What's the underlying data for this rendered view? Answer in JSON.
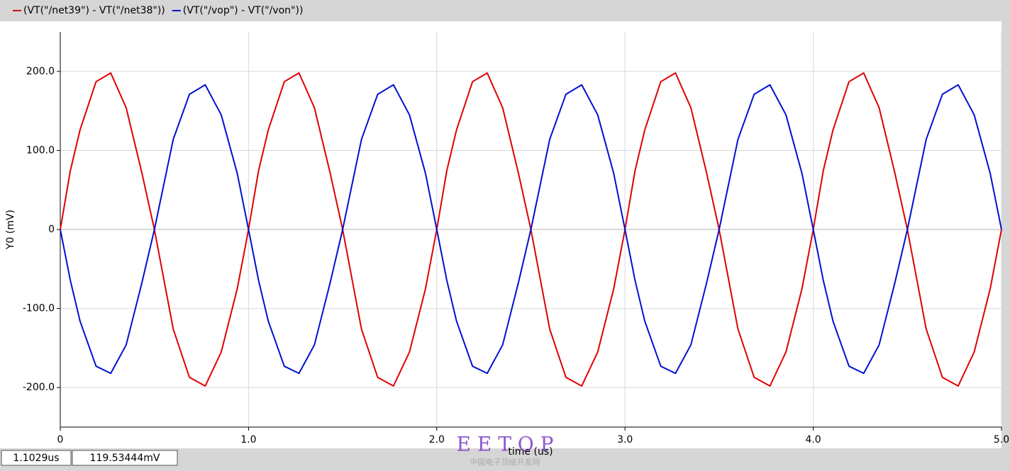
{
  "chart_data": {
    "type": "line",
    "xlabel": "time (us)",
    "ylabel": "Y0 (mV)",
    "x": [
      0,
      0.053,
      0.105,
      0.19,
      0.268,
      0.35,
      0.433,
      0.5,
      0.6,
      0.686,
      0.77,
      0.855,
      0.94,
      1,
      1.053,
      1.105,
      1.19,
      1.268,
      1.35,
      1.433,
      1.5,
      1.6,
      1.686,
      1.77,
      1.855,
      1.94,
      2,
      2.053,
      2.105,
      2.19,
      2.268,
      2.35,
      2.433,
      2.5,
      2.6,
      2.686,
      2.77,
      2.855,
      2.94,
      3,
      3.053,
      3.105,
      3.19,
      3.268,
      3.35,
      3.433,
      3.5,
      3.6,
      3.686,
      3.77,
      3.855,
      3.94,
      4,
      4.053,
      4.105,
      4.19,
      4.268,
      4.35,
      4.433,
      4.5,
      4.6,
      4.686,
      4.77,
      4.855,
      4.94,
      5
    ],
    "series": [
      {
        "name": "(VT(\"/net39\") - VT(\"/net38\"))",
        "color": "#e00000",
        "values": [
          0,
          74,
          126,
          187,
          198,
          154,
          72,
          0,
          -126,
          -187,
          -198,
          -155,
          -75,
          0,
          74,
          126,
          187,
          198,
          154,
          72,
          0,
          -126,
          -187,
          -198,
          -155,
          -75,
          0,
          74,
          126,
          187,
          198,
          154,
          72,
          0,
          -126,
          -187,
          -198,
          -155,
          -75,
          0,
          74,
          126,
          187,
          198,
          154,
          72,
          0,
          -126,
          -187,
          -198,
          -155,
          -75,
          0,
          74,
          126,
          187,
          198,
          154,
          72,
          0,
          -126,
          -187,
          -198,
          -155,
          -75,
          0
        ]
      },
      {
        "name": "(VT(\"/vop\") - VT(\"/von\"))",
        "color": "#0010d0",
        "values": [
          0,
          -64,
          -116,
          -173,
          -182,
          -146,
          -68,
          0,
          114,
          171,
          183,
          145,
          71,
          0,
          -64,
          -116,
          -173,
          -182,
          -146,
          -68,
          0,
          114,
          171,
          183,
          145,
          71,
          0,
          -64,
          -116,
          -173,
          -182,
          -146,
          -68,
          0,
          114,
          171,
          183,
          145,
          71,
          0,
          -64,
          -116,
          -173,
          -182,
          -146,
          -68,
          0,
          114,
          171,
          183,
          145,
          71,
          0,
          -64,
          -116,
          -173,
          -182,
          -146,
          -68,
          0,
          114,
          171,
          183,
          145,
          71,
          0
        ]
      }
    ],
    "xlim": [
      0,
      5
    ],
    "xticks": [
      0,
      {
        "value": 1,
        "label": "1.0"
      },
      {
        "value": 2,
        "label": "2.0"
      },
      {
        "value": 3,
        "label": "3.0"
      },
      {
        "value": 4,
        "label": "4.0"
      },
      {
        "value": 5,
        "label": "5.0"
      }
    ],
    "ylim": [
      -250,
      250
    ],
    "yticks": [
      {
        "value": -200,
        "label": "-200.0"
      },
      {
        "value": -100,
        "label": "-100.0"
      },
      0,
      {
        "value": 100,
        "label": "100.0"
      },
      {
        "value": 200,
        "label": "200.0"
      }
    ],
    "grid": true,
    "legend": "top-left"
  },
  "status": {
    "cursor_x": "1.1029us",
    "cursor_y": "119.53444mV"
  },
  "watermark": {
    "title": "E E T O P",
    "subtitle": "中国电子顶级开发网"
  }
}
